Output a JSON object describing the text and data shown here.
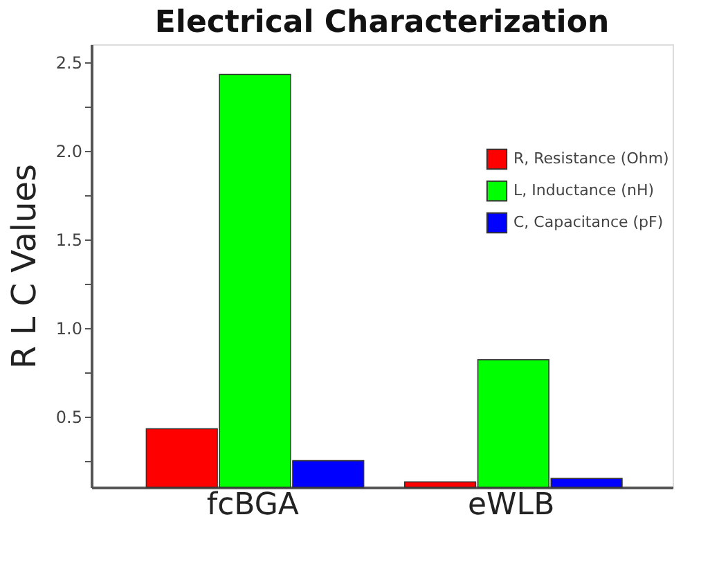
{
  "chart_data": {
    "type": "bar",
    "title": "Electrical Characterization",
    "ylabel": "R L C Values",
    "categories": [
      "fcBGA",
      "eWLB"
    ],
    "series": [
      {
        "name": "R, Resistance (Ohm)",
        "color": "#ff0000",
        "values": [
          0.43,
          0.13
        ]
      },
      {
        "name": "L, Inductance (nH)",
        "color": "#00ff00",
        "values": [
          2.43,
          0.82
        ]
      },
      {
        "name": "C, Capacitance (pF)",
        "color": "#0000ff",
        "values": [
          0.25,
          0.15
        ]
      }
    ],
    "ylim": [
      0.1,
      2.6
    ],
    "yticks": [
      {
        "value": 0.25,
        "label": null
      },
      0.5,
      {
        "value": 0.75,
        "label": null
      },
      {
        "value": 1,
        "label": "1.0"
      },
      {
        "value": 1.25,
        "label": null
      },
      1.5,
      {
        "value": 1.75,
        "label": null
      },
      {
        "value": 2,
        "label": "2.0"
      },
      {
        "value": 2.25,
        "label": null
      },
      2.5
    ],
    "grid": false,
    "legend": "top right"
  }
}
